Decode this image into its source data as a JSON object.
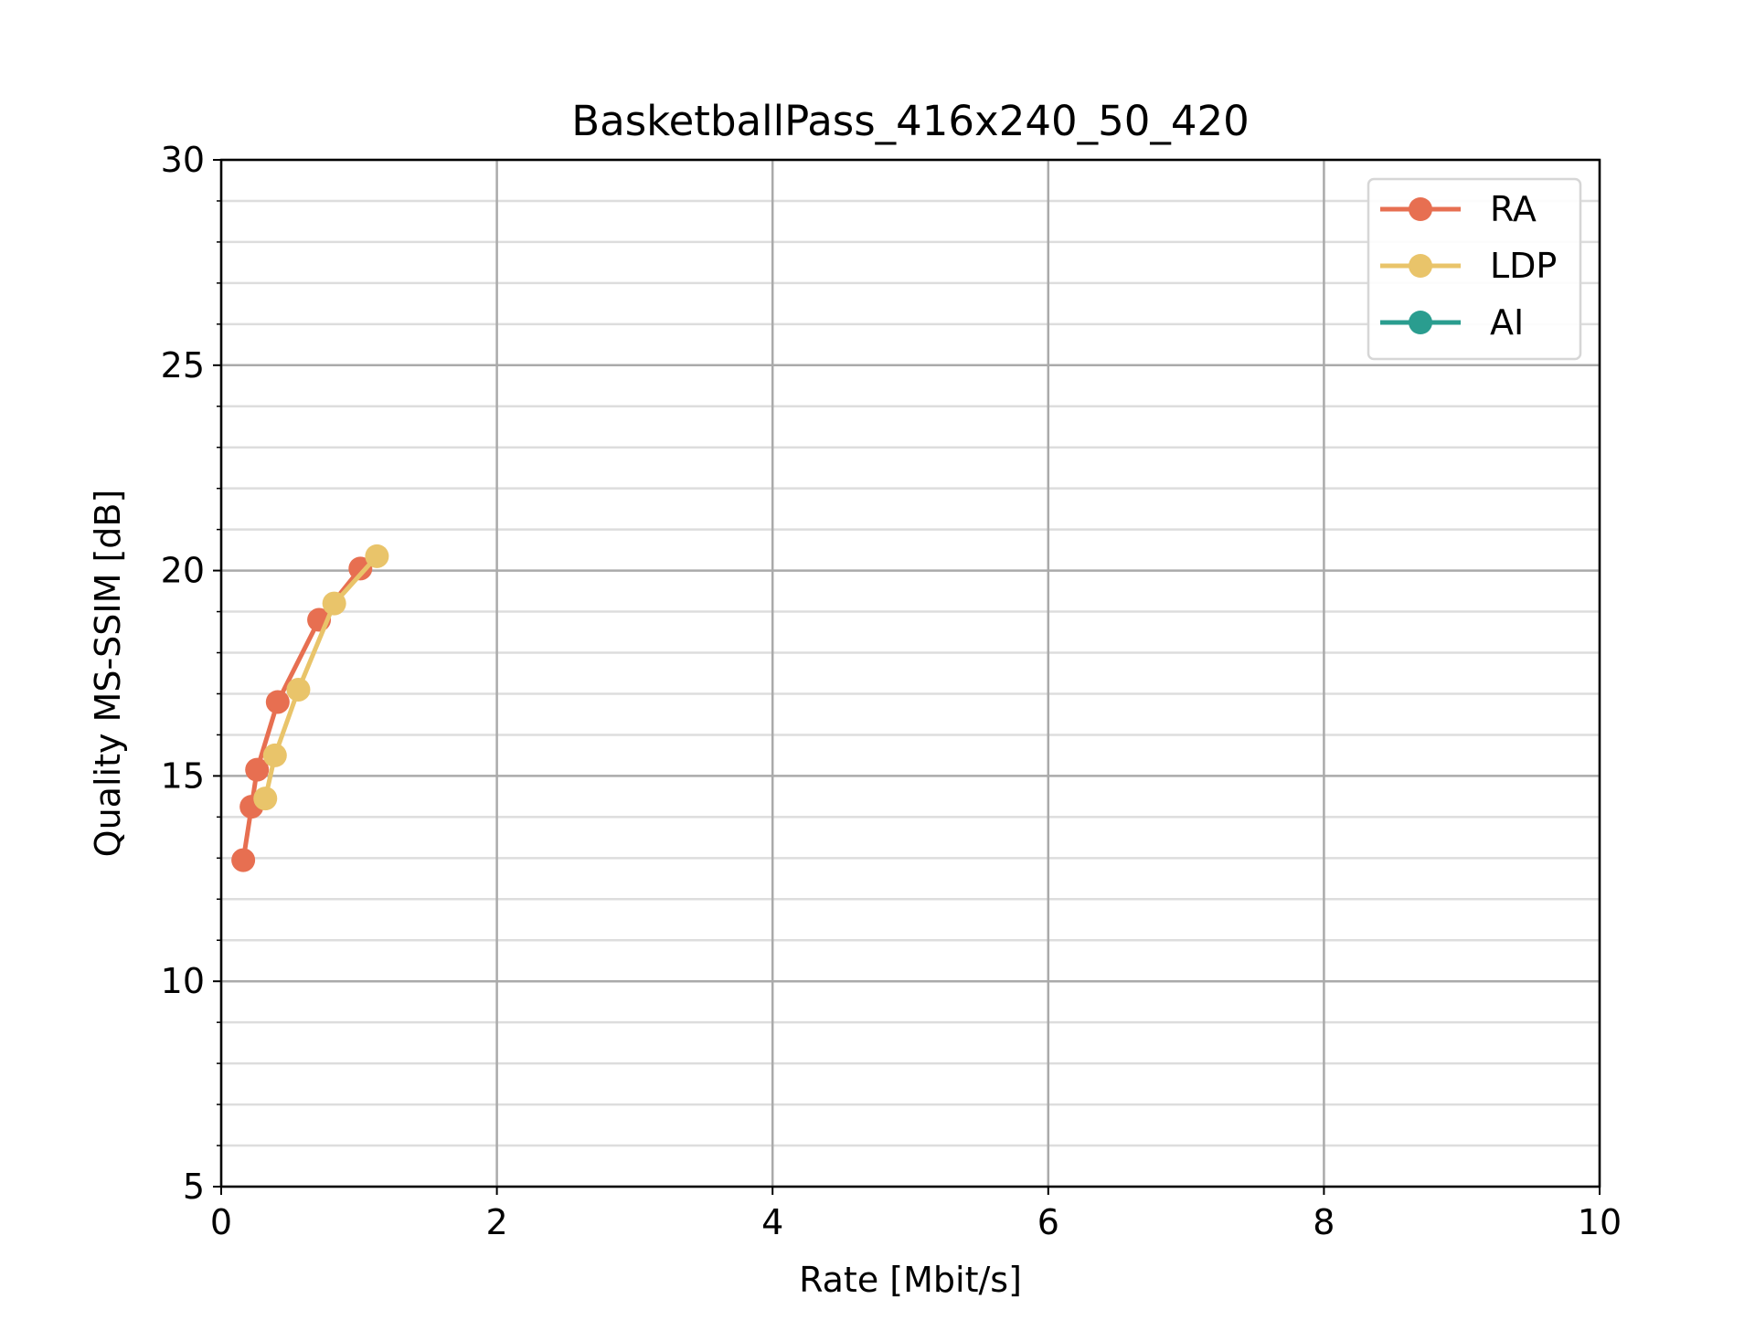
{
  "chart_data": {
    "type": "line",
    "title": "BasketballPass_416x240_50_420",
    "xlabel": "Rate [Mbit/s]",
    "ylabel": "Quality MS-SSIM [dB]",
    "xlim": [
      0,
      10
    ],
    "ylim": [
      5,
      30
    ],
    "xticks": [
      0,
      2,
      4,
      6,
      8,
      10
    ],
    "yticks": [
      5,
      10,
      15,
      20,
      25,
      30
    ],
    "yminor_step": 1,
    "grid": true,
    "legend_position": "top-right",
    "series": [
      {
        "name": "RA",
        "color": "#e76f51",
        "points": [
          [
            0.16,
            12.95
          ],
          [
            0.22,
            14.25
          ],
          [
            0.26,
            15.15
          ],
          [
            0.41,
            16.8
          ],
          [
            0.71,
            18.8
          ],
          [
            1.01,
            20.05
          ]
        ]
      },
      {
        "name": "LDP",
        "color": "#e9c46a",
        "points": [
          [
            0.32,
            14.45
          ],
          [
            0.39,
            15.5
          ],
          [
            0.56,
            17.1
          ],
          [
            0.82,
            19.2
          ],
          [
            1.13,
            20.35
          ]
        ]
      },
      {
        "name": "AI",
        "color": "#2a9d8f",
        "points": []
      }
    ]
  }
}
